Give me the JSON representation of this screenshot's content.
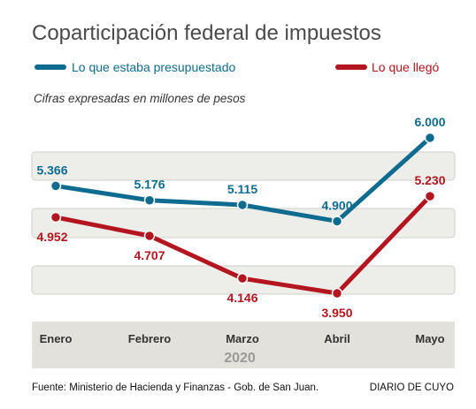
{
  "colors": {
    "presupuestado": "#0f6b8f",
    "llego": "#b3161f",
    "band": "#ededea",
    "band_stroke": "#cfcfca",
    "axis_band": "#e2e1dc"
  },
  "chart_data": {
    "type": "line",
    "title": "Coparticipación federal de impuestos",
    "subtitle": "Cifras expresadas en millones de pesos",
    "categories": [
      "Enero",
      "Febrero",
      "Marzo",
      "Abril",
      "Mayo"
    ],
    "year_label": "2020",
    "series": [
      {
        "name": "Lo que estaba presupuestado",
        "color_key": "presupuestado",
        "values": [
          5366,
          5176,
          5115,
          4900,
          6000
        ],
        "labels": [
          "5.366",
          "5.176",
          "5.115",
          "4.900",
          "6.000"
        ],
        "label_position": [
          "above",
          "above",
          "above",
          "above",
          "above"
        ]
      },
      {
        "name": "Lo que llegó",
        "color_key": "llego",
        "values": [
          4952,
          4707,
          4146,
          3950,
          5230
        ],
        "labels": [
          "4.952",
          "4.707",
          "4.146",
          "3.950",
          "5.230"
        ],
        "label_position": [
          "below",
          "below",
          "below",
          "below",
          "above"
        ]
      }
    ],
    "ylim": [
      3700,
      6200
    ],
    "grid": "alternating horizontal bands",
    "legend": "top"
  },
  "footer": {
    "source": "Fuente: Ministerio de Hacienda y Finanzas - Gob. de San Juan.",
    "credit": "DIARIO DE CUYO"
  }
}
